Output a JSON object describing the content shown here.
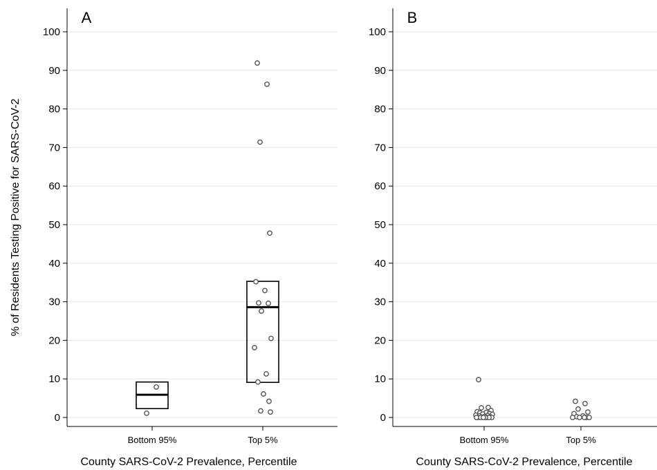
{
  "chart_data": [
    {
      "type": "box",
      "panel_label": "A",
      "ylabel": "% of Residents Testing Positive for SARS-CoV-2",
      "xlabel": "County SARS-CoV-2 Prevalence, Percentile",
      "ylim": [
        0,
        100
      ],
      "yticks": [
        0,
        10,
        20,
        30,
        40,
        50,
        60,
        70,
        80,
        90,
        100
      ],
      "categories": [
        "Bottom 95%",
        "Top 5%"
      ],
      "grid": true,
      "boxes": [
        {
          "category": "Bottom 95%",
          "q1": 2.3,
          "median": 5.9,
          "q3": 9.2
        },
        {
          "category": "Top 5%",
          "q1": 9.1,
          "median": 28.6,
          "q3": 35.3
        }
      ],
      "points": [
        {
          "category": "Bottom 95%",
          "values": [
            1.1,
            7.9
          ]
        },
        {
          "category": "Top 5%",
          "values": [
            91.9,
            86.4,
            71.4,
            47.8,
            35.2,
            32.9,
            29.7,
            29.6,
            27.6,
            20.5,
            18.1,
            11.3,
            9.2,
            6.1,
            4.2,
            1.7,
            1.4
          ]
        }
      ]
    },
    {
      "type": "scatter",
      "panel_label": "B",
      "ylabel": "",
      "xlabel": "County SARS-CoV-2 Prevalence, Percentile",
      "ylim": [
        0,
        100
      ],
      "yticks": [
        0,
        10,
        20,
        30,
        40,
        50,
        60,
        70,
        80,
        90,
        100
      ],
      "categories": [
        "Bottom 95%",
        "Top 5%"
      ],
      "grid": true,
      "points": [
        {
          "category": "Bottom 95%",
          "values": [
            9.8,
            2.6,
            2.5,
            1.8,
            1.5,
            1.3,
            1.2,
            1.0,
            0.9,
            0.8,
            0.6,
            0.5,
            0.4,
            0.3,
            0.2,
            0.1,
            0,
            0,
            0,
            0,
            0,
            0,
            0,
            0
          ]
        },
        {
          "category": "Top 5%",
          "values": [
            4.2,
            3.6,
            2.2,
            1.4,
            1.0,
            0.4,
            0.2,
            0,
            0,
            0,
            0,
            0
          ]
        }
      ]
    }
  ]
}
